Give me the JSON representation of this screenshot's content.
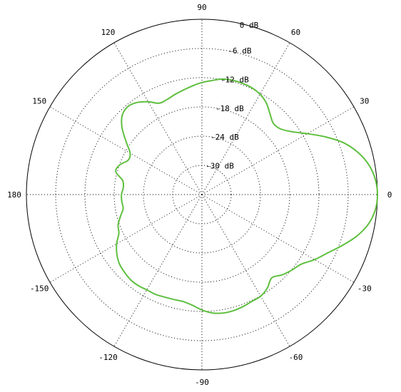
{
  "chart_data": {
    "type": "polar-line",
    "title": "",
    "radial_unit": "dB",
    "radial_range": [
      -36,
      0
    ],
    "radial_rings": [
      {
        "value": 0,
        "label": "0 dB"
      },
      {
        "value": -6,
        "label": "-6 dB"
      },
      {
        "value": -12,
        "label": "-12 dB"
      },
      {
        "value": -18,
        "label": "-18 dB"
      },
      {
        "value": -24,
        "label": "-24 dB"
      },
      {
        "value": -30,
        "label": "-30 dB"
      }
    ],
    "angle_ticks": [
      {
        "value": 0,
        "label": "0"
      },
      {
        "value": 30,
        "label": "30"
      },
      {
        "value": 60,
        "label": "60"
      },
      {
        "value": 90,
        "label": "90"
      },
      {
        "value": 120,
        "label": "120"
      },
      {
        "value": 150,
        "label": "150"
      },
      {
        "value": 180,
        "label": "180"
      },
      {
        "value": -150,
        "label": "-150"
      },
      {
        "value": -120,
        "label": "-120"
      },
      {
        "value": -90,
        "label": "-90"
      },
      {
        "value": -60,
        "label": "-60"
      },
      {
        "value": -30,
        "label": "-30"
      }
    ],
    "grid": true,
    "line_color": "#5fbf3f",
    "series": [
      {
        "angles": [
          0,
          5,
          10,
          15,
          20,
          25,
          30,
          35,
          40,
          45,
          50,
          55,
          60,
          65,
          70,
          75,
          80,
          85,
          90,
          95,
          100,
          105,
          110,
          115,
          120,
          125,
          130,
          135,
          140,
          145,
          150,
          155,
          160,
          165,
          170,
          175,
          180,
          -175,
          -170,
          -165,
          -160,
          -155,
          -150,
          -145,
          -140,
          -135,
          -130,
          -125,
          -120,
          -115,
          -110,
          -105,
          -100,
          -95,
          -90,
          -85,
          -80,
          -75,
          -70,
          -65,
          -60,
          -55,
          -50,
          -45,
          -40,
          -35,
          -30,
          -25,
          -20,
          -15,
          -10,
          -5
        ],
        "values": [
          0.0,
          -0.3,
          -1.2,
          -2.8,
          -5.0,
          -8.0,
          -11.0,
          -13.5,
          -15.0,
          -15.3,
          -14.3,
          -13.0,
          -12.2,
          -11.8,
          -11.7,
          -11.7,
          -11.9,
          -12.5,
          -13.0,
          -13.6,
          -14.2,
          -14.7,
          -15.2,
          -15.3,
          -14.0,
          -12.9,
          -12.4,
          -12.9,
          -14.6,
          -17.0,
          -19.0,
          -19.3,
          -18.1,
          -17.7,
          -19.5,
          -19.8,
          -19.5,
          -19.5,
          -19.6,
          -18.7,
          -17.7,
          -17.2,
          -15.8,
          -14.7,
          -13.9,
          -13.5,
          -13.2,
          -13.2,
          -13.4,
          -13.4,
          -13.6,
          -13.7,
          -13.7,
          -13.2,
          -12.3,
          -11.6,
          -11.3,
          -11.3,
          -11.5,
          -11.8,
          -11.9,
          -12.6,
          -13.7,
          -12.7,
          -11.9,
          -11.1,
          -9.3,
          -7.6,
          -5.4,
          -3.1,
          -1.3,
          -0.3
        ]
      }
    ]
  }
}
